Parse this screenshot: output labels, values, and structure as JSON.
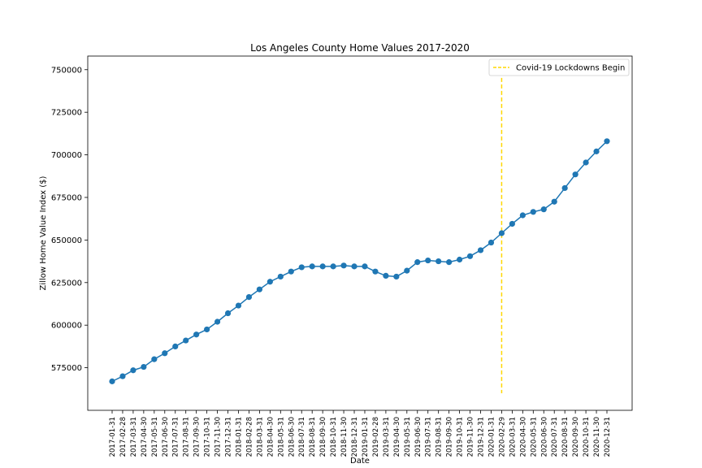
{
  "chart_data": {
    "type": "line",
    "title": "Los Angeles County Home Values 2017-2020",
    "xlabel": "Date",
    "ylabel": "Zillow Home Value Index ($)",
    "ylim": [
      550000,
      758000
    ],
    "yticks": [
      575000,
      600000,
      625000,
      650000,
      675000,
      700000,
      725000,
      750000
    ],
    "grid": false,
    "legend_position": "top-right",
    "x": [
      "2017-01-31",
      "2017-02-28",
      "2017-03-31",
      "2017-04-30",
      "2017-05-31",
      "2017-06-30",
      "2017-07-31",
      "2017-08-31",
      "2017-09-30",
      "2017-10-31",
      "2017-11-30",
      "2017-12-31",
      "2018-01-31",
      "2018-02-28",
      "2018-03-31",
      "2018-04-30",
      "2018-05-31",
      "2018-06-30",
      "2018-07-31",
      "2018-08-31",
      "2018-09-30",
      "2018-10-31",
      "2018-11-30",
      "2018-12-31",
      "2019-01-31",
      "2019-02-28",
      "2019-03-31",
      "2019-04-30",
      "2019-05-31",
      "2019-06-30",
      "2019-07-31",
      "2019-08-31",
      "2019-09-30",
      "2019-10-31",
      "2019-11-30",
      "2019-12-31",
      "2020-01-31",
      "2020-02-29",
      "2020-03-31",
      "2020-04-30",
      "2020-05-31",
      "2020-06-30",
      "2020-07-31",
      "2020-08-31",
      "2020-09-30",
      "2020-10-31",
      "2020-11-30",
      "2020-12-31"
    ],
    "series": [
      {
        "name": "",
        "color": "#1f77b4",
        "values": [
          567000,
          570000,
          573500,
          575500,
          580000,
          583500,
          587500,
          591000,
          594500,
          597500,
          602000,
          607000,
          611500,
          616500,
          621000,
          625500,
          628500,
          631500,
          634000,
          634500,
          634500,
          634500,
          635000,
          634500,
          634500,
          631500,
          629000,
          628500,
          632000,
          637000,
          638000,
          637500,
          637000,
          638500,
          640500,
          644000,
          648500,
          654000,
          659500,
          664500,
          666500,
          668000,
          672500,
          680500,
          688500,
          695500,
          702000,
          708000
        ]
      }
    ],
    "annotations": [
      {
        "label": "Covid-19 Lockdowns Begin",
        "x": "2020-02-29",
        "ymin": 560000,
        "ymax": 749000,
        "color": "#ffd700",
        "style": "dashed"
      }
    ]
  }
}
